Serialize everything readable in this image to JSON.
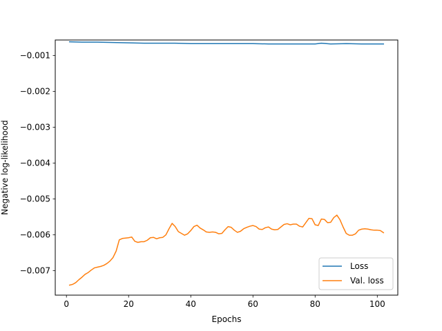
{
  "chart_data": {
    "type": "line",
    "title": "",
    "xlabel": "Epochs",
    "ylabel": "Negative log-likelihood",
    "xlim": [
      -3.6,
      106.6
    ],
    "ylim": [
      -0.00768,
      -0.00057
    ],
    "xticks": [
      0,
      20,
      40,
      60,
      80,
      100
    ],
    "xtick_labels": [
      "0",
      "20",
      "40",
      "60",
      "80",
      "100"
    ],
    "yticks": [
      -0.007,
      -0.006,
      -0.005,
      -0.004,
      -0.003,
      -0.002,
      -0.001
    ],
    "ytick_labels": [
      "−0.007",
      "−0.006",
      "−0.005",
      "−0.004",
      "−0.003",
      "−0.002",
      "−0.001"
    ],
    "grid": false,
    "legend_position": "lower right",
    "series": [
      {
        "name": "Loss",
        "color": "#1f77b4",
        "x": [
          1,
          5,
          10,
          15,
          20,
          25,
          30,
          35,
          40,
          45,
          50,
          55,
          60,
          65,
          70,
          75,
          80,
          82,
          85,
          90,
          95,
          102
        ],
        "y": [
          -0.00062,
          -0.00063,
          -0.00063,
          -0.00064,
          -0.00065,
          -0.00066,
          -0.00066,
          -0.00066,
          -0.00067,
          -0.00067,
          -0.00067,
          -0.00067,
          -0.00067,
          -0.00068,
          -0.00068,
          -0.00068,
          -0.00068,
          -0.00066,
          -0.00068,
          -0.00067,
          -0.00068,
          -0.00068
        ]
      },
      {
        "name": "Val. loss",
        "color": "#ff7f0e",
        "x": [
          1,
          2,
          3,
          4,
          5,
          6,
          7,
          8,
          9,
          10,
          11,
          12,
          13,
          14,
          15,
          16,
          17,
          18,
          19,
          20,
          21,
          22,
          23,
          24,
          25,
          26,
          27,
          28,
          29,
          30,
          31,
          32,
          33,
          34,
          35,
          36,
          37,
          38,
          39,
          40,
          41,
          42,
          43,
          44,
          45,
          46,
          47,
          48,
          49,
          50,
          51,
          52,
          53,
          54,
          55,
          56,
          57,
          58,
          59,
          60,
          61,
          62,
          63,
          64,
          65,
          66,
          67,
          68,
          69,
          70,
          71,
          72,
          73,
          74,
          75,
          76,
          77,
          78,
          79,
          80,
          81,
          82,
          83,
          84,
          85,
          86,
          87,
          88,
          89,
          90,
          91,
          92,
          93,
          94,
          95,
          96,
          97,
          98,
          99,
          100,
          101,
          102
        ],
        "y": [
          -0.0074,
          -0.00738,
          -0.00733,
          -0.00725,
          -0.00718,
          -0.0071,
          -0.00705,
          -0.00698,
          -0.00692,
          -0.0069,
          -0.00688,
          -0.00685,
          -0.0068,
          -0.00673,
          -0.00663,
          -0.00645,
          -0.00614,
          -0.0061,
          -0.00609,
          -0.00608,
          -0.00606,
          -0.00618,
          -0.00621,
          -0.00619,
          -0.00619,
          -0.00615,
          -0.00608,
          -0.00607,
          -0.00611,
          -0.00608,
          -0.00607,
          -0.006,
          -0.00583,
          -0.00568,
          -0.00577,
          -0.00591,
          -0.00596,
          -0.00601,
          -0.00597,
          -0.00588,
          -0.00577,
          -0.00573,
          -0.00581,
          -0.00586,
          -0.00592,
          -0.00593,
          -0.00592,
          -0.00593,
          -0.00597,
          -0.00596,
          -0.00586,
          -0.00577,
          -0.00579,
          -0.00587,
          -0.00593,
          -0.0059,
          -0.00583,
          -0.00579,
          -0.00576,
          -0.00574,
          -0.00577,
          -0.00584,
          -0.00585,
          -0.0058,
          -0.00578,
          -0.00584,
          -0.00586,
          -0.00585,
          -0.00578,
          -0.00571,
          -0.00569,
          -0.00572,
          -0.0057,
          -0.0057,
          -0.00576,
          -0.00578,
          -0.00566,
          -0.00554,
          -0.00555,
          -0.00572,
          -0.00574,
          -0.00556,
          -0.00557,
          -0.00566,
          -0.00565,
          -0.00552,
          -0.00545,
          -0.00558,
          -0.00578,
          -0.00596,
          -0.00601,
          -0.00601,
          -0.00597,
          -0.00587,
          -0.00584,
          -0.00583,
          -0.00584,
          -0.00586,
          -0.00587,
          -0.00587,
          -0.00588,
          -0.00594
        ]
      }
    ]
  }
}
